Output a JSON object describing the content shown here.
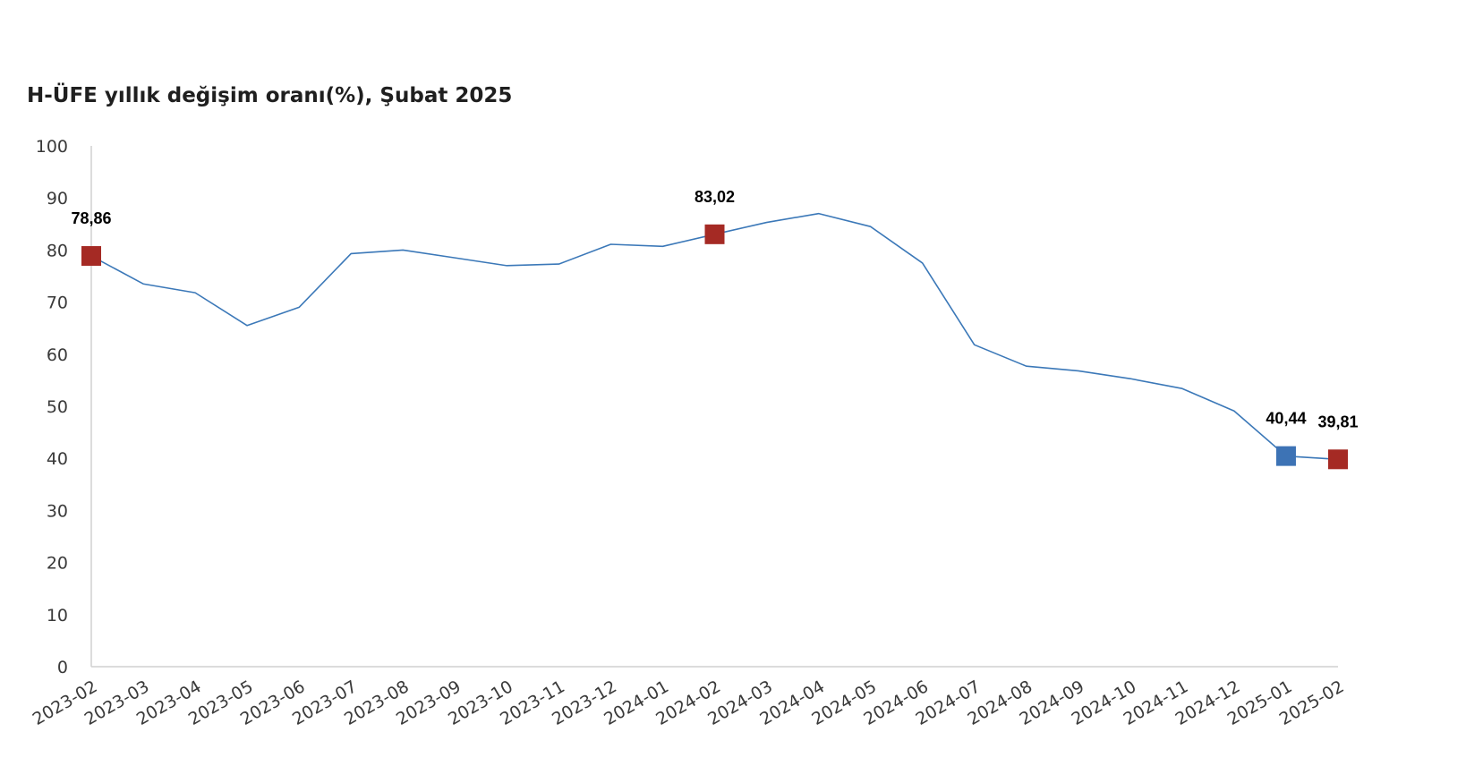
{
  "chart_data": {
    "type": "line",
    "title": "H-ÜFE yıllık değişim oranı(%), Şubat 2025",
    "xlabel": "",
    "ylabel": "",
    "ylim": [
      0,
      100
    ],
    "yticks": [
      0,
      10,
      20,
      30,
      40,
      50,
      60,
      70,
      80,
      90,
      100
    ],
    "grid": false,
    "legend": "none",
    "categories": [
      "2023-02",
      "2023-03",
      "2023-04",
      "2023-05",
      "2023-06",
      "2023-07",
      "2023-08",
      "2023-09",
      "2023-10",
      "2023-11",
      "2023-12",
      "2024-01",
      "2024-02",
      "2024-03",
      "2024-04",
      "2024-05",
      "2024-06",
      "2024-07",
      "2024-08",
      "2024-09",
      "2024-10",
      "2024-11",
      "2024-12",
      "2025-01",
      "2025-02"
    ],
    "series": [
      {
        "values": [
          78.86,
          73.5,
          71.8,
          65.5,
          69.0,
          79.3,
          80.0,
          78.5,
          77.0,
          77.3,
          81.1,
          80.7,
          83.02,
          85.3,
          87.0,
          84.5,
          77.5,
          61.8,
          57.7,
          56.8,
          55.3,
          53.4,
          49.1,
          40.44,
          39.81
        ],
        "color": "#3b78b8"
      }
    ],
    "highlights": [
      {
        "index": 0,
        "label": "78,86",
        "color": "#a52a24"
      },
      {
        "index": 12,
        "label": "83,02",
        "color": "#a52a24"
      },
      {
        "index": 23,
        "label": "40,44",
        "color": "#3d73b5"
      },
      {
        "index": 24,
        "label": "39,81",
        "color": "#a52a24"
      }
    ]
  }
}
